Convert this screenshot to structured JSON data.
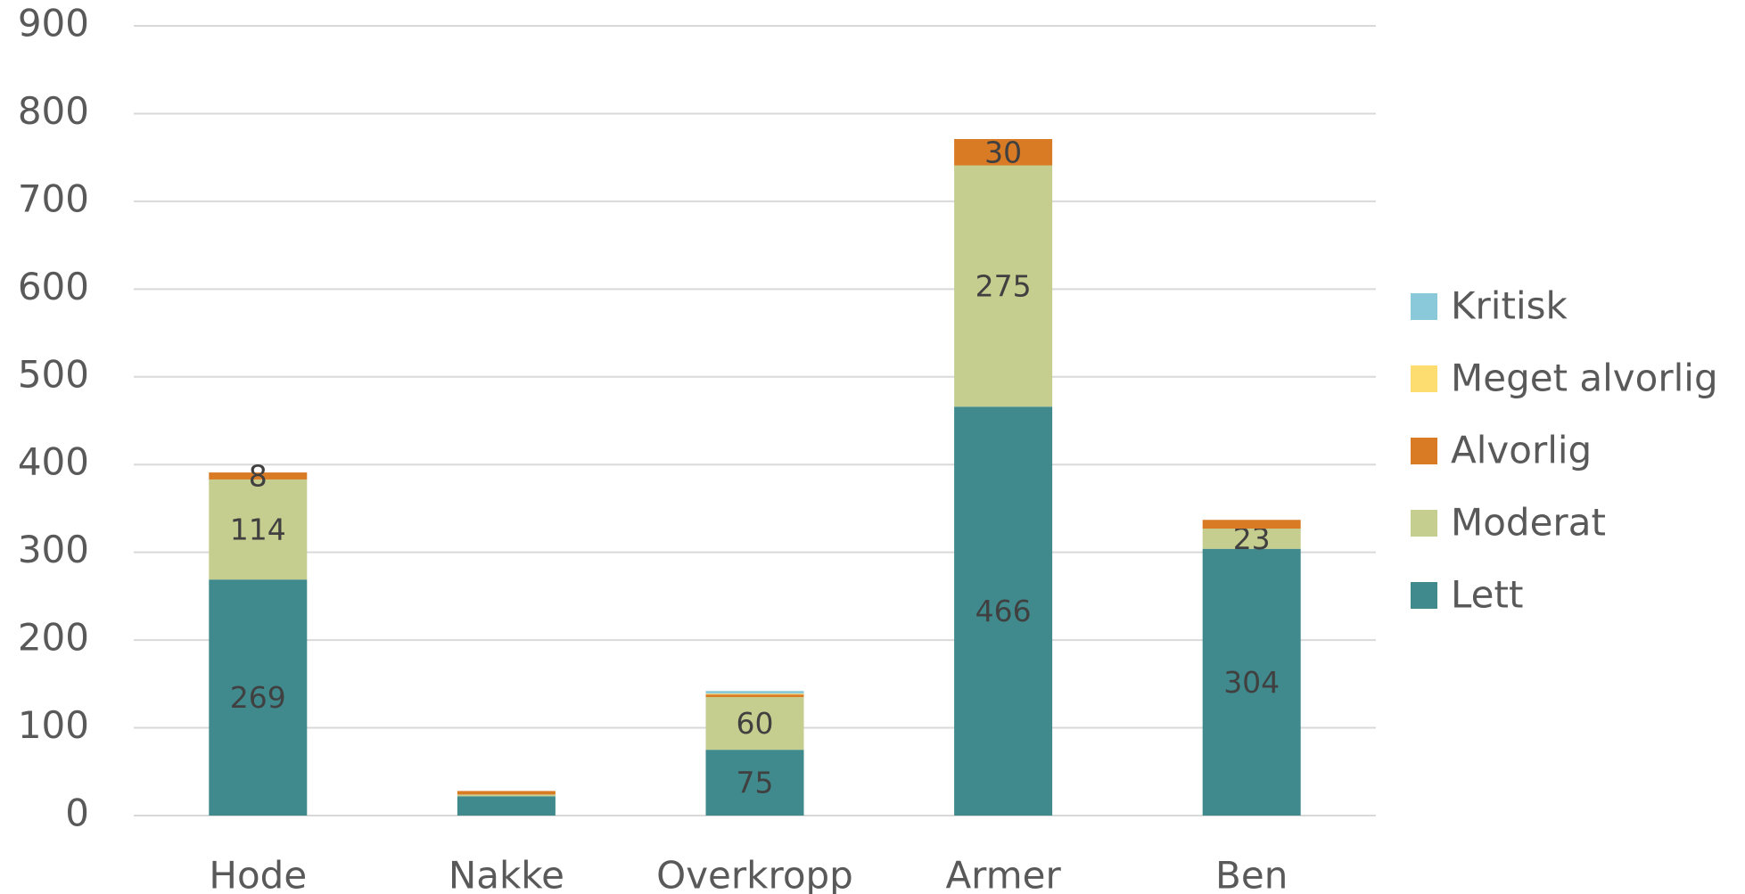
{
  "chart_data": {
    "type": "bar",
    "stacked": true,
    "categories": [
      "Hode",
      "Nakke",
      "Overkropp",
      "Armer",
      "Ben"
    ],
    "series": [
      {
        "name": "Lett",
        "color": "#408a8e",
        "values": [
          269,
          22,
          75,
          466,
          304
        ],
        "value_labels": [
          "269",
          null,
          "75",
          "466",
          "304"
        ]
      },
      {
        "name": "Moderat",
        "color": "#c5cd8f",
        "values": [
          114,
          2,
          60,
          275,
          23
        ],
        "value_labels": [
          "114",
          null,
          "60",
          "275",
          "23"
        ]
      },
      {
        "name": "Alvorlig",
        "color": "#d97a24",
        "values": [
          8,
          4,
          3,
          30,
          10
        ],
        "value_labels": [
          "8",
          null,
          null,
          "30",
          null
        ]
      },
      {
        "name": "Meget alvorlig",
        "color": "#fddd6f",
        "values": [
          0,
          0,
          1,
          0,
          0
        ],
        "value_labels": [
          null,
          null,
          null,
          null,
          null
        ]
      },
      {
        "name": "Kritisk",
        "color": "#8ac9d9",
        "values": [
          0,
          0,
          3,
          0,
          0
        ],
        "value_labels": [
          null,
          null,
          null,
          null,
          null
        ]
      }
    ],
    "ylim": [
      0,
      900
    ],
    "yticks": [
      0,
      100,
      200,
      300,
      400,
      500,
      600,
      700,
      800,
      900
    ],
    "grid": true,
    "legend": "right"
  }
}
